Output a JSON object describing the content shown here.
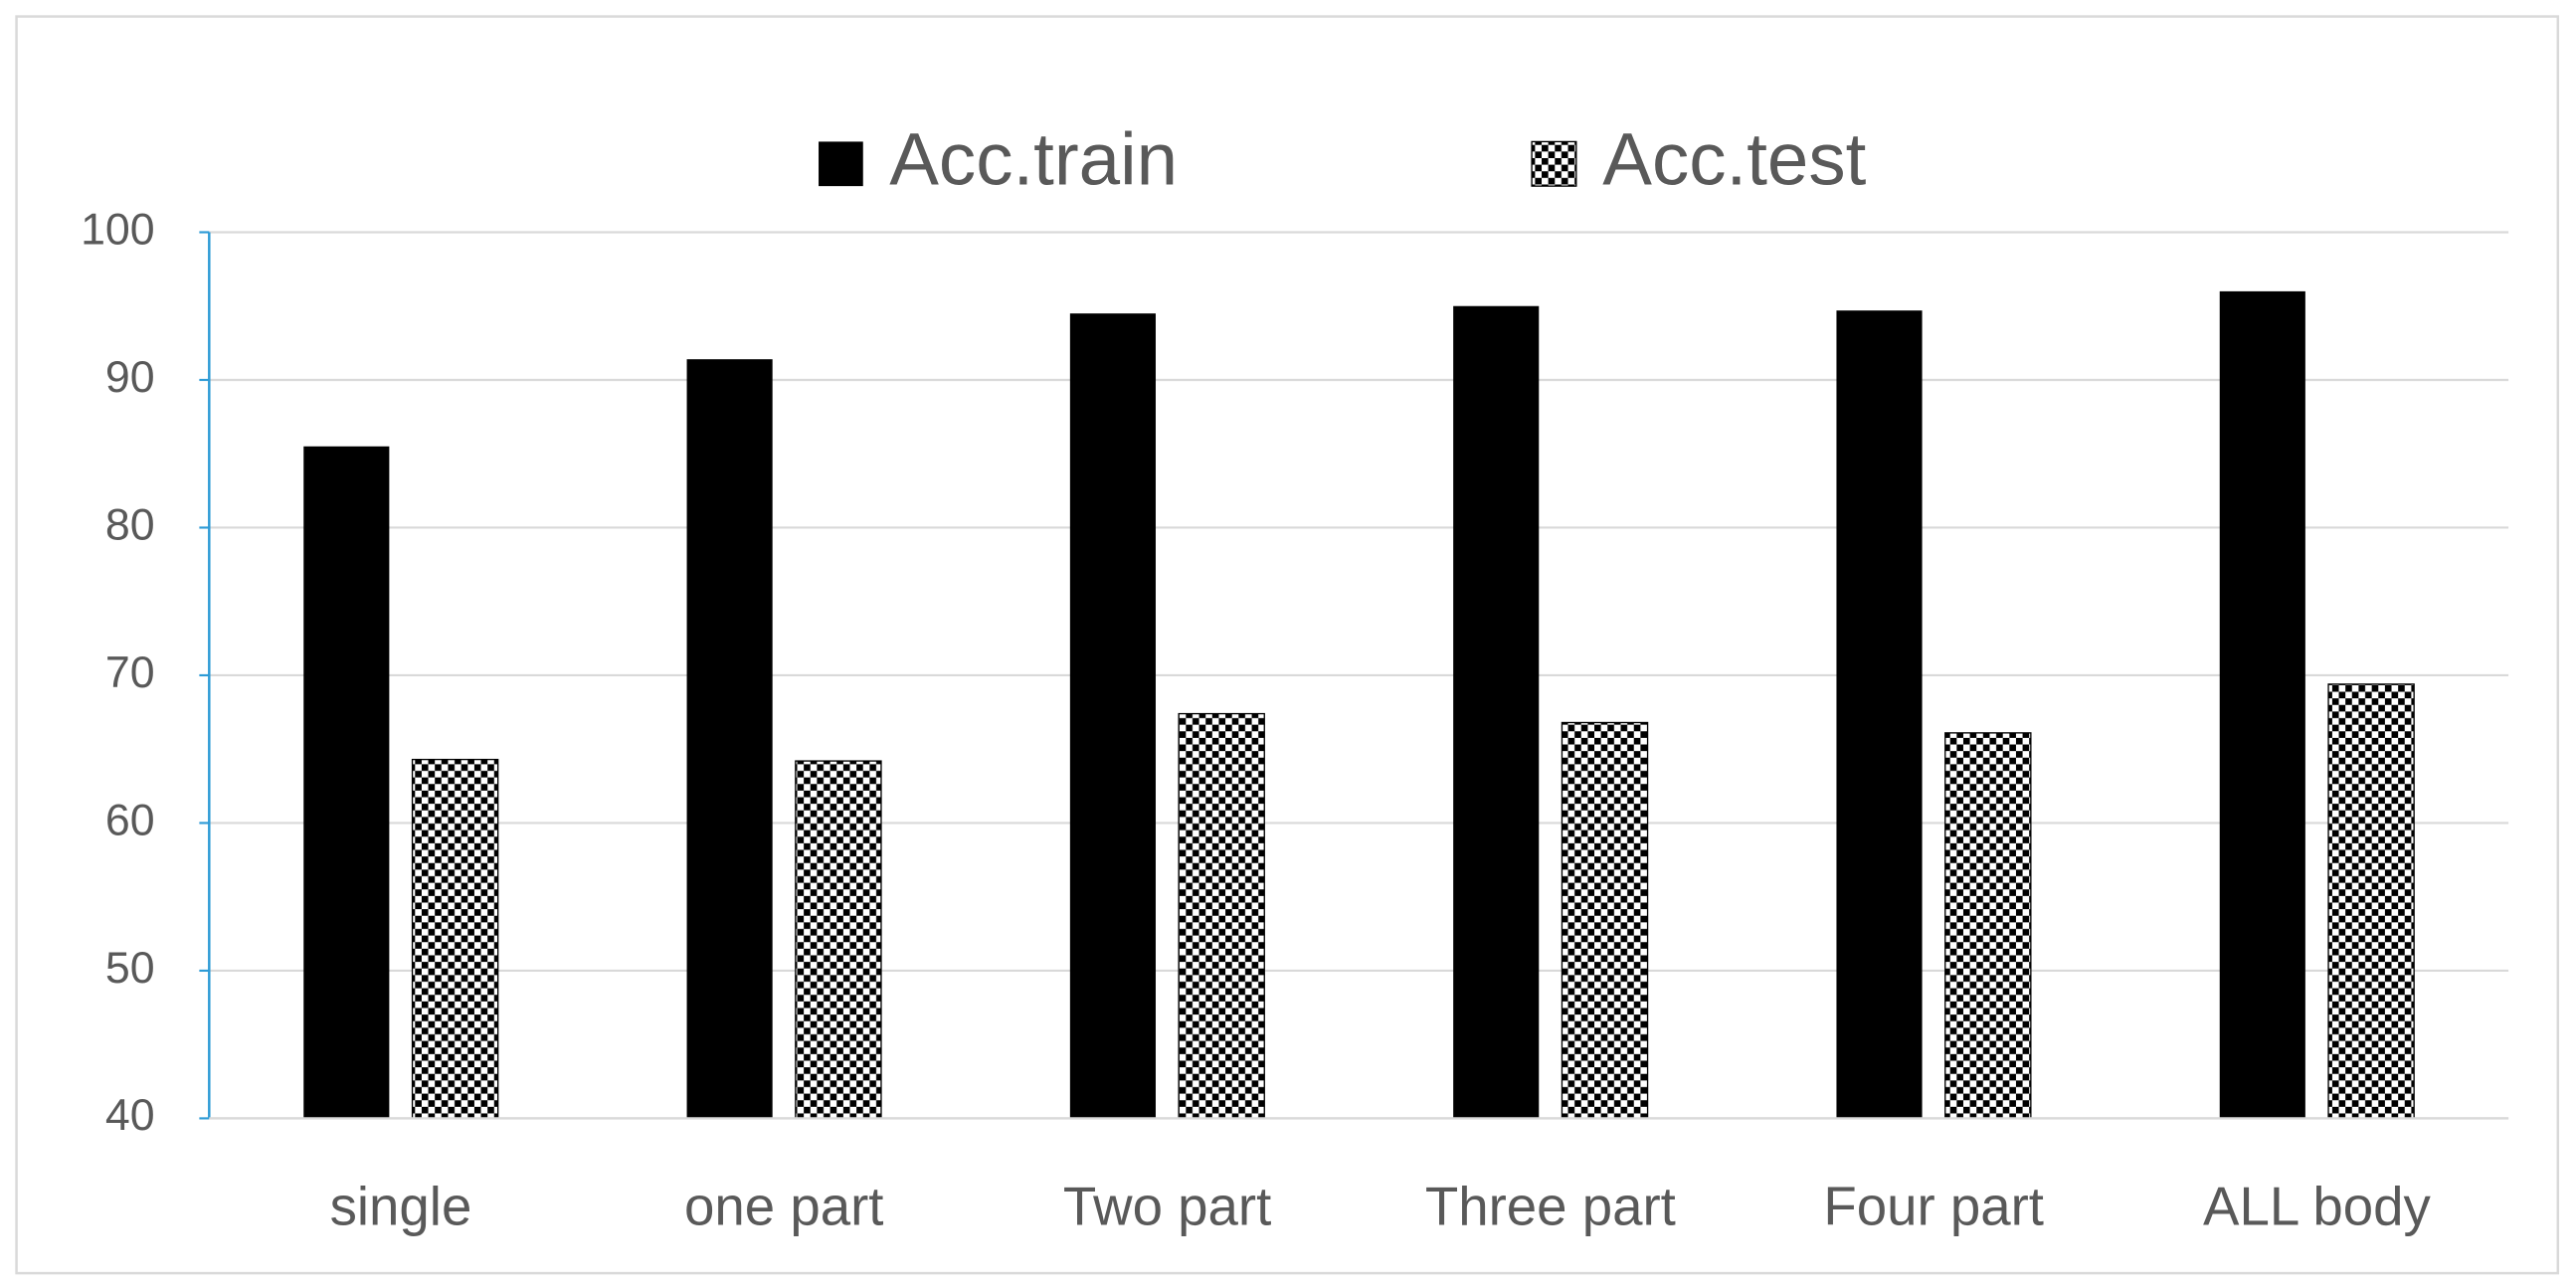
{
  "chart_data": {
    "type": "bar",
    "categories": [
      "single",
      "one part",
      "Two part",
      "Three part",
      "Four part",
      "ALL body"
    ],
    "series": [
      {
        "name": "Acc.train",
        "color": "#000000",
        "fill": "solid",
        "values": [
          85.5,
          91.4,
          94.5,
          95.0,
          94.7,
          96.0
        ]
      },
      {
        "name": "Acc.test",
        "color": "#000000",
        "fill": "checkerboard",
        "values": [
          64.3,
          64.2,
          67.4,
          66.8,
          66.1,
          69.4
        ]
      }
    ],
    "ylim": [
      40,
      100
    ],
    "yticks": [
      40,
      50,
      60,
      70,
      80,
      90,
      100
    ],
    "grid": true,
    "legend": "top"
  }
}
